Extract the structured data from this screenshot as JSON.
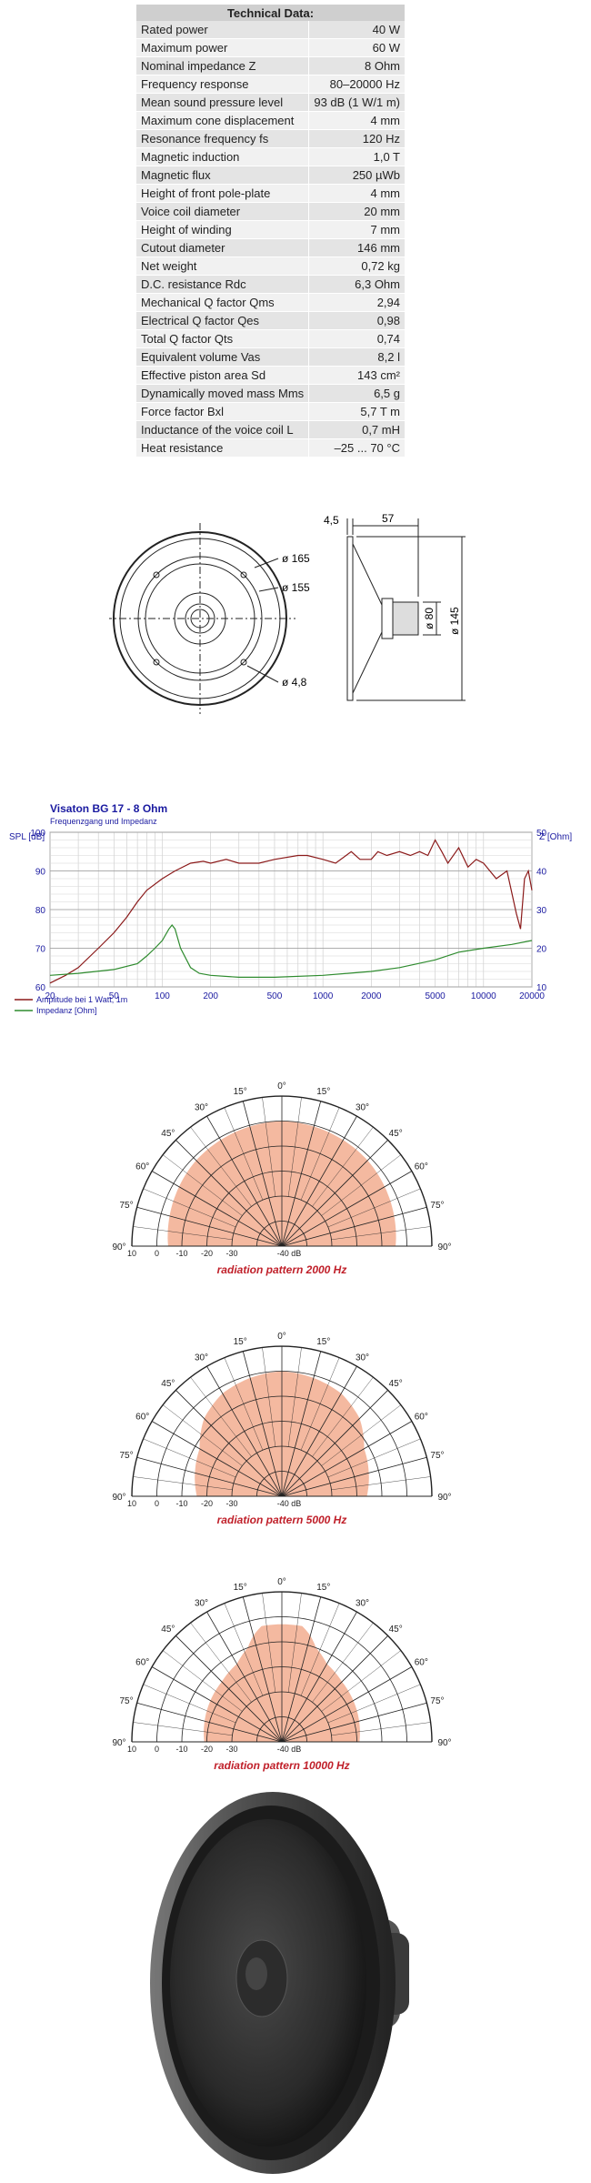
{
  "tech": {
    "title": "Technical Data:",
    "rows": [
      [
        "Rated power",
        "40 W"
      ],
      [
        "Maximum power",
        "60 W"
      ],
      [
        "Nominal impedance Z",
        "8 Ohm"
      ],
      [
        "Frequency response",
        "80–20000 Hz"
      ],
      [
        "Mean sound pressure level",
        "93 dB (1 W/1 m)"
      ],
      [
        "Maximum cone displacement",
        "4 mm"
      ],
      [
        "Resonance frequency fs",
        "120 Hz"
      ],
      [
        "Magnetic induction",
        "1,0 T"
      ],
      [
        "Magnetic flux",
        "250 µWb"
      ],
      [
        "Height of front pole-plate",
        "4 mm"
      ],
      [
        "Voice coil diameter",
        "20 mm"
      ],
      [
        "Height of winding",
        "7 mm"
      ],
      [
        "Cutout diameter",
        "146 mm"
      ],
      [
        "Net weight",
        "0,72 kg"
      ],
      [
        "D.C. resistance Rdc",
        "6,3 Ohm"
      ],
      [
        "Mechanical Q factor Qms",
        "2,94"
      ],
      [
        "Electrical Q factor Qes",
        "0,98"
      ],
      [
        "Total Q factor Qts",
        "0,74"
      ],
      [
        "Equivalent volume Vas",
        "8,2 l"
      ],
      [
        "Effective piston area Sd",
        "143 cm²"
      ],
      [
        "Dynamically moved mass Mms",
        "6,5 g"
      ],
      [
        "Force factor Bxl",
        "5,7 T m"
      ],
      [
        "Inductance of the voice coil L",
        "0,7 mH"
      ],
      [
        "Heat resistance",
        "–25 ... 70 °C"
      ]
    ]
  },
  "drawing": {
    "d165": "ø 165",
    "d155": "ø 155",
    "d48": "ø 4,8",
    "w45": "4,5",
    "w57": "57",
    "d80": "ø 80",
    "d145": "ø 145"
  },
  "colors": {
    "spl": "#8b1a1a",
    "imp": "#2e8b2e",
    "title": "#1a1aa0",
    "polarFill": "#f4b9a0",
    "polarLabel": "#c0202a"
  },
  "chart_data": [
    {
      "type": "line",
      "title": "Visaton BG 17 - 8 Ohm",
      "subtitle": "Frequenzgang und Impedanz",
      "ylabel": "SPL [dB]",
      "y2label": "Z [Ohm]",
      "ylim": [
        60,
        100
      ],
      "y2lim": [
        10,
        50
      ],
      "xscale": "log",
      "xlim": [
        20,
        20000
      ],
      "xticks": [
        "20",
        "50",
        "100",
        "200",
        "500",
        "1000",
        "2000",
        "5000",
        "10000",
        "20000"
      ],
      "yticks": [
        "60",
        "70",
        "80",
        "90",
        "100"
      ],
      "y2ticks": [
        "10",
        "20",
        "30",
        "40",
        "50"
      ],
      "series": [
        {
          "name": "Amplitude bei 1 Watt, 1m",
          "axis": "left",
          "x": [
            20,
            25,
            30,
            40,
            50,
            60,
            70,
            80,
            100,
            120,
            150,
            180,
            200,
            250,
            300,
            400,
            500,
            700,
            800,
            1000,
            1200,
            1500,
            1700,
            2000,
            2200,
            2500,
            3000,
            3500,
            4000,
            4500,
            5000,
            5500,
            6000,
            7000,
            8000,
            9000,
            10000,
            12000,
            14000,
            16000,
            17000,
            18000,
            19000,
            20000
          ],
          "y": [
            61,
            63,
            65,
            70,
            74,
            78,
            82,
            85,
            88,
            90,
            92,
            92.5,
            92,
            93,
            92,
            92,
            93,
            94,
            94,
            93,
            92,
            95,
            93,
            93,
            95,
            94,
            95,
            94,
            95,
            94,
            98,
            95,
            92,
            96,
            91,
            93,
            92,
            88,
            90,
            79,
            75,
            88,
            90,
            85
          ]
        },
        {
          "name": "Impedanz [Ohm]",
          "axis": "right",
          "x": [
            20,
            30,
            50,
            70,
            80,
            90,
            100,
            110,
            115,
            120,
            130,
            150,
            170,
            200,
            300,
            500,
            1000,
            2000,
            3000,
            5000,
            7000,
            10000,
            15000,
            20000
          ],
          "y": [
            13,
            13.5,
            14.5,
            16,
            18,
            20,
            22,
            25,
            26,
            25,
            20,
            15,
            13.5,
            13,
            12.5,
            12.5,
            13,
            14,
            15,
            17,
            19,
            20,
            21,
            22
          ]
        }
      ]
    },
    {
      "type": "polar",
      "caption": "radiation pattern 2000 Hz",
      "angles": [
        0,
        15,
        30,
        45,
        60,
        75,
        90
      ],
      "angle_labels": [
        "0°",
        "15°",
        "30°",
        "45°",
        "60°",
        "75°",
        "90°"
      ],
      "ring_labels": [
        "10",
        "0",
        "-10",
        "-20",
        "-30",
        "-40 dB"
      ],
      "angle_deg": [
        0,
        15,
        30,
        45,
        60,
        75,
        90
      ],
      "level_db": [
        0,
        -0.5,
        -1,
        -1.5,
        -2.5,
        -3.5,
        -4.5
      ]
    },
    {
      "type": "polar",
      "caption": "radiation pattern 5000 Hz",
      "angles": [
        0,
        15,
        30,
        45,
        60,
        75,
        90
      ],
      "angle_labels": [
        "0°",
        "15°",
        "30°",
        "45°",
        "60°",
        "75°",
        "90°"
      ],
      "ring_labels": [
        "10",
        "0",
        "-10",
        "-20",
        "-30",
        "-40 dB"
      ],
      "angle_deg": [
        0,
        15,
        30,
        45,
        60,
        75,
        90
      ],
      "level_db": [
        0,
        -1,
        -2.5,
        -6,
        -12,
        -14,
        -16
      ]
    },
    {
      "type": "polar",
      "caption": "radiation pattern 10000 Hz",
      "angles": [
        0,
        15,
        30,
        45,
        60,
        75,
        90
      ],
      "angle_labels": [
        "0°",
        "15°",
        "30°",
        "45°",
        "60°",
        "75°",
        "90°"
      ],
      "ring_labels": [
        "10",
        "0",
        "-10",
        "-20",
        "-30",
        "-40 dB"
      ],
      "angle_deg": [
        0,
        10,
        15,
        20,
        30,
        45,
        60,
        75,
        90
      ],
      "level_db": [
        -3,
        -3,
        -6,
        -10,
        -14,
        -16,
        -17,
        -18,
        -19
      ]
    }
  ]
}
